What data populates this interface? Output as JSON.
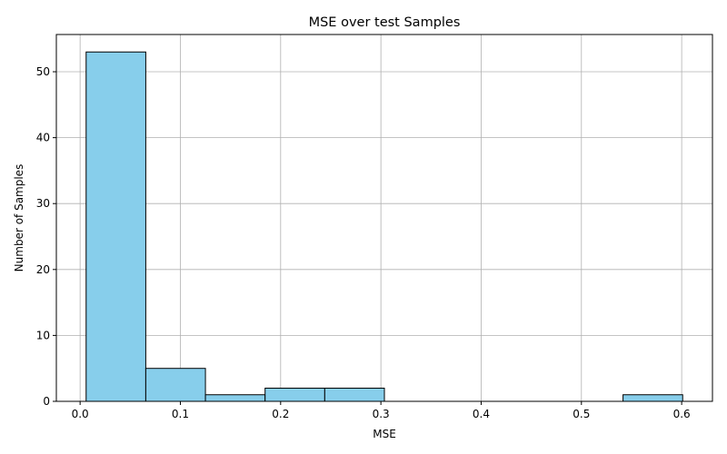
{
  "chart_data": {
    "type": "bar",
    "title": "MSE over test Samples",
    "xlabel": "MSE",
    "ylabel": "Number of Samples",
    "bins": [
      {
        "start": 0.006,
        "end": 0.0655,
        "count": 53
      },
      {
        "start": 0.0655,
        "end": 0.125,
        "count": 5
      },
      {
        "start": 0.125,
        "end": 0.1845,
        "count": 1
      },
      {
        "start": 0.1845,
        "end": 0.244,
        "count": 2
      },
      {
        "start": 0.244,
        "end": 0.3035,
        "count": 2
      },
      {
        "start": 0.3035,
        "end": 0.363,
        "count": 0
      },
      {
        "start": 0.363,
        "end": 0.4225,
        "count": 0
      },
      {
        "start": 0.4225,
        "end": 0.482,
        "count": 0
      },
      {
        "start": 0.482,
        "end": 0.5415,
        "count": 0
      },
      {
        "start": 0.5415,
        "end": 0.601,
        "count": 1
      }
    ],
    "xlim": [
      -0.0237,
      0.6307
    ],
    "ylim": [
      0,
      55.65
    ],
    "xticks": [
      0.0,
      0.1,
      0.2,
      0.3,
      0.4,
      0.5,
      0.6
    ],
    "xtick_labels": [
      "0.0",
      "0.1",
      "0.2",
      "0.3",
      "0.4",
      "0.5",
      "0.6"
    ],
    "yticks": [
      0,
      10,
      20,
      30,
      40,
      50
    ],
    "ytick_labels": [
      "0",
      "10",
      "20",
      "30",
      "40",
      "50"
    ],
    "grid": true,
    "bar_color": "#87CEEB",
    "edge_color": "#000000"
  }
}
